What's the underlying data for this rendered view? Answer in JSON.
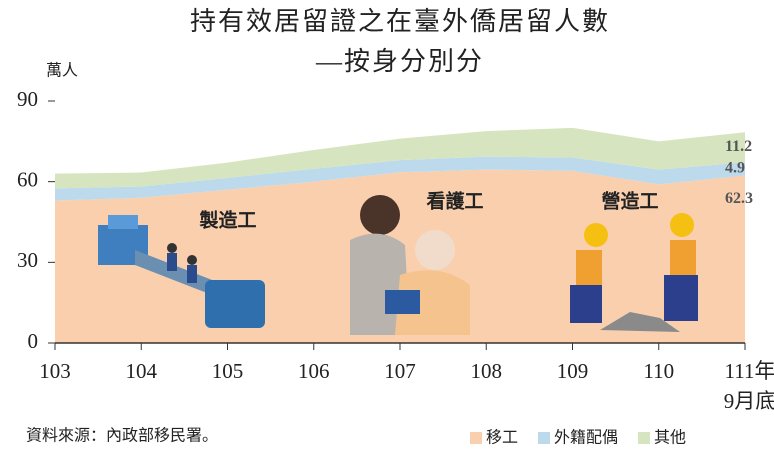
{
  "chart_data": {
    "type": "stacked_area",
    "title": "持有效居留證之在臺外僑居留人數",
    "subtitle": "—按身分別分",
    "y_label": "萬人",
    "categories": [
      "103",
      "104",
      "105",
      "106",
      "107",
      "108",
      "109",
      "110",
      "111年\n9月底"
    ],
    "series": [
      {
        "name": "移工",
        "color": "#f9cfae",
        "values": [
          53,
          54,
          57,
          60,
          63.5,
          64.5,
          64,
          59,
          62.3
        ]
      },
      {
        "name": "外籍配偶",
        "color": "#bcdaec",
        "values": [
          4.5,
          4.2,
          4.4,
          4.8,
          4.5,
          4.8,
          5,
          5.5,
          4.9
        ]
      },
      {
        "name": "其他",
        "color": "#d6e5bf",
        "values": [
          5.5,
          5.2,
          5.7,
          7,
          8,
          9.5,
          11,
          10.5,
          11.2
        ]
      }
    ],
    "ylim": [
      0,
      90
    ],
    "yticks": [
      0,
      30,
      60,
      90
    ],
    "annotations": [
      "製造工",
      "看護工",
      "營造工"
    ],
    "source": "資料來源：內政部移民署。"
  }
}
